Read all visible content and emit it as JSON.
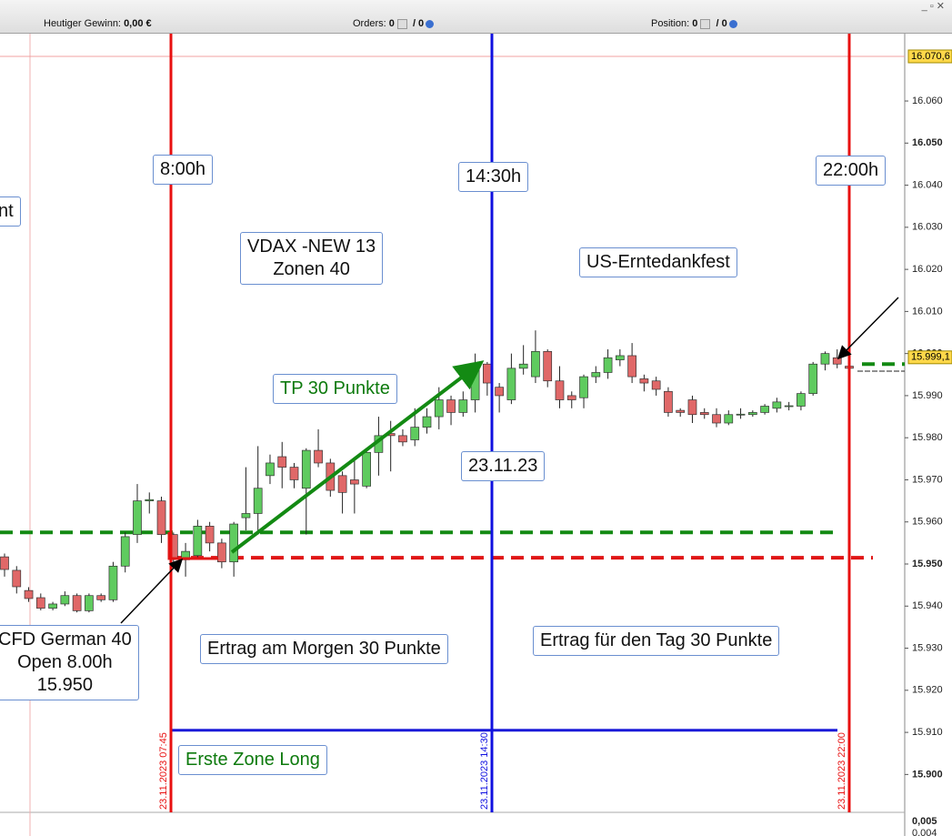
{
  "toolbar": {
    "profit_label": "Heutiger Gewinn:",
    "profit_value": "0,00 €",
    "orders_label": "Orders:",
    "orders_count": "0",
    "orders_total": "/ 0",
    "position_label": "Position:",
    "position_count": "0",
    "position_total": "/ 0"
  },
  "chart_data": {
    "type": "candlestick",
    "open": [
      15951.7,
      15948.5,
      15943.7,
      15942,
      15939.5,
      15940.5,
      15942.5,
      15938.9,
      15942.5,
      15941.5,
      15949.5,
      15957,
      15965,
      15965,
      15957,
      15951,
      15952,
      15959,
      15955,
      15950.5,
      15961,
      15962,
      15971,
      15975.5,
      15973,
      15968,
      15977,
      15974,
      15971,
      15970,
      15968.5,
      15976.5,
      15981,
      15980.5,
      15979.5,
      15982.5,
      15985,
      15989,
      15986,
      15989,
      15997.5,
      15992,
      15989,
      15996.5,
      15994.5,
      16000.5,
      15993.5,
      15990,
      15989.5,
      15994.5,
      15995.5,
      15998.5,
      15999.5,
      15994,
      15993.5,
      15991,
      15986.5,
      15989,
      15986,
      15985.5,
      15983.5,
      15985.5,
      15985.5,
      15986,
      15987,
      15987.5,
      15987.5,
      15990.5,
      15997.5,
      15999,
      15997
    ],
    "high": [
      15952.5,
      15949.5,
      15944.5,
      15943,
      15941,
      15943.5,
      15943,
      15943,
      15943,
      15950.5,
      15957.5,
      15969,
      15967,
      15966,
      15957.5,
      15955,
      15960.5,
      15960,
      15956,
      15960,
      15973,
      15978,
      15976,
      15979,
      15974,
      15977.5,
      15982,
      15975,
      15972,
      15975,
      15977,
      15985,
      15984,
      15982,
      15987,
      15987,
      15992,
      15990,
      15991,
      16000,
      15998,
      15993,
      16000,
      16002,
      16005.5,
      16001,
      15997,
      15991,
      15995,
      15997,
      16001,
      16001,
      16002.5,
      15995,
      15994.5,
      15992,
      15987,
      15990,
      15987,
      15987,
      15986.5,
      15987,
      15986.5,
      15988,
      15989.5,
      15988.5,
      15991,
      15998,
      16000.5,
      16001,
      15998
    ],
    "low": [
      15947,
      15943,
      15941,
      15939,
      15939,
      15940,
      15938.5,
      15938.5,
      15941,
      15941,
      15948,
      15955,
      15962,
      15955,
      15950.5,
      15947,
      15951,
      15953,
      15949,
      15947,
      15958,
      15957,
      15969,
      15968,
      15968,
      15957,
      15973,
      15966,
      15962,
      15962,
      15968,
      15971,
      15972,
      15978,
      15978,
      15981,
      15982,
      15983,
      15985,
      15986,
      15990,
      15986,
      15988,
      15995,
      15993,
      15992,
      15987,
      15987,
      15987,
      15993,
      15994,
      15997,
      15993,
      15991,
      15990,
      15985,
      15985,
      15983.5,
      15984.5,
      15982.5,
      15983,
      15984.5,
      15985,
      15985.5,
      15986,
      15986.5,
      15986.5,
      15990,
      15996,
      15996.5,
      15995.5
    ],
    "close": [
      15948.7,
      15944.6,
      15941.8,
      15939.5,
      15940.5,
      15942.5,
      15938.9,
      15942.5,
      15941.5,
      15949.5,
      15956.5,
      15965,
      15965.3,
      15957,
      15951.2,
      15953,
      15959,
      15955,
      15950.5,
      15959.5,
      15962,
      15968,
      15974,
      15973,
      15970,
      15977,
      15974,
      15967.5,
      15967,
      15969,
      15976.5,
      15980.5,
      15980.5,
      15979,
      15982.5,
      15985,
      15989,
      15986,
      15989,
      15997.5,
      15993,
      15990,
      15996.5,
      15997.5,
      16000.5,
      15993.5,
      15989,
      15989,
      15994.5,
      15995.5,
      15999,
      15999.5,
      15994.5,
      15993,
      15991.5,
      15986,
      15986,
      15985.5,
      15985.5,
      15983.5,
      15985.5,
      15985.6,
      15986,
      15987.5,
      15988.5,
      15987.6,
      15990.5,
      15997.5,
      16000,
      15997.5,
      15996.5
    ],
    "up_color": "#5fcb5f",
    "down_color": "#e06868",
    "ylim": [
      15891,
      16076
    ],
    "yticks": [
      {
        "value": 16060,
        "label": "16.060"
      },
      {
        "value": 16050,
        "label": "16.050"
      },
      {
        "value": 16040,
        "label": "16.040"
      },
      {
        "value": 16030,
        "label": "16.030"
      },
      {
        "value": 16020,
        "label": "16.020"
      },
      {
        "value": 16010,
        "label": "16.010"
      },
      {
        "value": 16000,
        "label": "16.000"
      },
      {
        "value": 15990,
        "label": "15.990"
      },
      {
        "value": 15980,
        "label": "15.980"
      },
      {
        "value": 15970,
        "label": "15.970"
      },
      {
        "value": 15960,
        "label": "15.960"
      },
      {
        "value": 15950,
        "label": "15.950"
      },
      {
        "value": 15940,
        "label": "15.940"
      },
      {
        "value": 15930,
        "label": "15.930"
      },
      {
        "value": 15920,
        "label": "15.920"
      },
      {
        "value": 15910,
        "label": "15.910"
      },
      {
        "value": 15900,
        "label": "15.900"
      }
    ],
    "price_markers": [
      {
        "value": 16070.6,
        "label": "16.070,6",
        "color": "#f0a0a0"
      },
      {
        "value": 15999.1,
        "label": "15.999,1",
        "color": "#ffd84a"
      }
    ],
    "levels": [
      {
        "value": 15957.5,
        "color": "#138a13"
      },
      {
        "value": 15951.5,
        "color": "#e01515"
      },
      {
        "value": 15997.5,
        "color": "#138a13"
      },
      {
        "value": 15910.5,
        "color": "#1a1ad8"
      }
    ],
    "vertical_lines": [
      {
        "label": "23.11.2023 07:45",
        "color": "#e81010"
      },
      {
        "label": "23.11.2023 14:30",
        "color": "#1010e0"
      },
      {
        "label": "23.11.2023 22:00",
        "color": "#e81010"
      }
    ],
    "annotations": [
      [
        "8:00h"
      ],
      [
        "14:30h"
      ],
      [
        "22:00h"
      ],
      [
        "nt"
      ],
      [
        "VDAX -NEW 13",
        "Zonen 40"
      ],
      [
        "US-Erntedankfest"
      ],
      [
        "TP 30 Punkte"
      ],
      [
        "23.11.23"
      ],
      [
        "CFD German 40",
        "Open 8.00h",
        "15.950"
      ],
      [
        "Ertrag am Morgen 30 Punkte"
      ],
      [
        "Ertrag für den Tag 30 Punkte"
      ],
      [
        "Erste Zone Long"
      ]
    ],
    "sub_axis_labels": [
      "0,005",
      "0,004"
    ]
  }
}
